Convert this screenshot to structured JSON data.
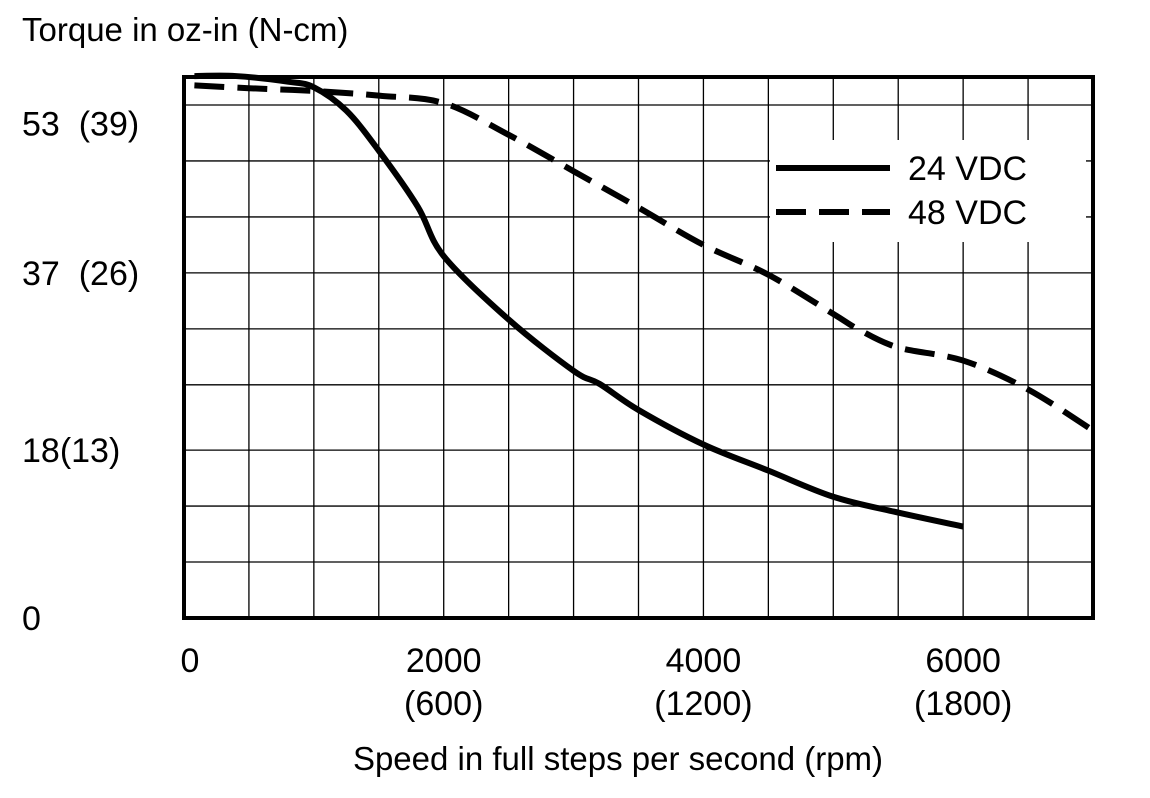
{
  "chart_data": {
    "type": "line",
    "title": "",
    "ylabel": "Torque in oz-in (N-cm)",
    "xlabel": "Speed in full steps per second (rpm)",
    "xlim": [
      0,
      7000
    ],
    "ylim": [
      0,
      58
    ],
    "x_grid_step": 500,
    "y_grid_values": [
      0,
      6,
      12,
      18,
      25,
      31,
      37,
      43,
      49,
      55
    ],
    "x_ticks": [
      {
        "value": 0,
        "label": "0",
        "sublabel": ""
      },
      {
        "value": 2000,
        "label": "2000",
        "sublabel": "(600)"
      },
      {
        "value": 4000,
        "label": "4000",
        "sublabel": "(1200)"
      },
      {
        "value": 6000,
        "label": "6000",
        "sublabel": "(1800)"
      }
    ],
    "y_ticks": [
      {
        "value": 0,
        "label": "0"
      },
      {
        "value": 18,
        "label": "18(13)"
      },
      {
        "value": 37,
        "label": "37  (26)"
      },
      {
        "value": 53,
        "label": "53  (39)"
      }
    ],
    "legend_position": "top-right",
    "series": [
      {
        "name": "24 VDC",
        "style": "solid",
        "points": [
          [
            80,
            58.1
          ],
          [
            400,
            58.1
          ],
          [
            800,
            57.5
          ],
          [
            1000,
            56.9
          ],
          [
            1250,
            54.4
          ],
          [
            1500,
            50.1
          ],
          [
            1800,
            44.1
          ],
          [
            2000,
            38.8
          ],
          [
            2500,
            32.0
          ],
          [
            3000,
            26.5
          ],
          [
            3200,
            25.1
          ],
          [
            3500,
            22.3
          ],
          [
            4000,
            18.6
          ],
          [
            4500,
            15.8
          ],
          [
            5000,
            13.0
          ],
          [
            5500,
            11.3
          ],
          [
            6000,
            9.8
          ]
        ]
      },
      {
        "name": "48 VDC",
        "style": "dashed",
        "points": [
          [
            80,
            57.1
          ],
          [
            500,
            56.8
          ],
          [
            1000,
            56.5
          ],
          [
            1500,
            56.0
          ],
          [
            2000,
            55.2
          ],
          [
            2500,
            51.8
          ],
          [
            3000,
            47.9
          ],
          [
            3500,
            44.0
          ],
          [
            4000,
            40.0
          ],
          [
            4500,
            36.8
          ],
          [
            5000,
            32.6
          ],
          [
            5200,
            30.9
          ],
          [
            5500,
            29.0
          ],
          [
            6000,
            27.6
          ],
          [
            6500,
            24.5
          ],
          [
            7000,
            20.1
          ]
        ]
      }
    ]
  }
}
